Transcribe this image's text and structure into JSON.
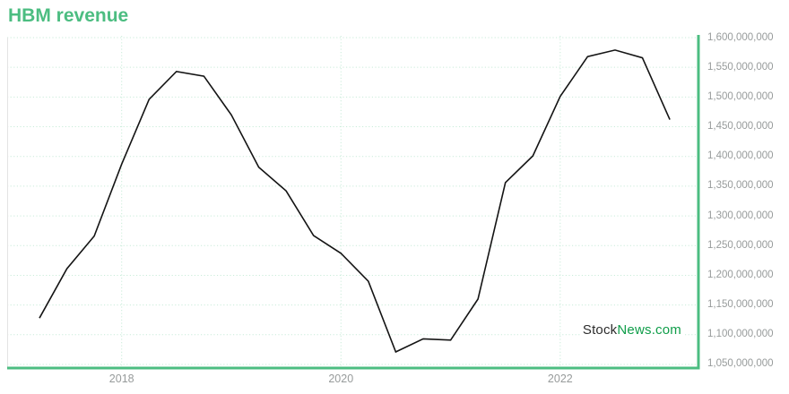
{
  "header": {
    "title": "HBM revenue"
  },
  "watermark": {
    "stock": "Stock",
    "news": "News",
    "dotcom": ".com"
  },
  "chart_data": {
    "type": "line",
    "title": "HBM revenue",
    "x": [
      "2017-Q2",
      "2017-Q3",
      "2017-Q4",
      "2018-Q1",
      "2018-Q2",
      "2018-Q3",
      "2018-Q4",
      "2019-Q1",
      "2019-Q2",
      "2019-Q3",
      "2019-Q4",
      "2020-Q1",
      "2020-Q2",
      "2020-Q3",
      "2020-Q4",
      "2021-Q1",
      "2021-Q2",
      "2021-Q3",
      "2021-Q4",
      "2022-Q1",
      "2022-Q2",
      "2022-Q3",
      "2022-Q4",
      "2023-Q1"
    ],
    "values": [
      1128000000,
      1211000000,
      1266000000,
      1387000000,
      1496000000,
      1543000000,
      1535000000,
      1470000000,
      1382000000,
      1342000000,
      1267000000,
      1237000000,
      1190000000,
      1071000000,
      1093000000,
      1091000000,
      1160000000,
      1356000000,
      1401000000,
      1501000000,
      1568000000,
      1579000000,
      1566000000,
      1462000000
    ],
    "x_tick_labels": [
      "2018",
      "2020",
      "2022"
    ],
    "x_tick_indices": [
      3,
      11,
      19
    ],
    "y_tick_labels": [
      "1,600,000,000",
      "1,550,000,000",
      "1,500,000,000",
      "1,450,000,000",
      "1,400,000,000",
      "1,350,000,000",
      "1,300,000,000",
      "1,250,000,000",
      "1,200,000,000",
      "1,150,000,000",
      "1,100,000,000",
      "1,050,000,000"
    ],
    "y_tick_values": [
      1600000000,
      1550000000,
      1500000000,
      1450000000,
      1400000000,
      1350000000,
      1300000000,
      1250000000,
      1200000000,
      1150000000,
      1100000000,
      1050000000
    ],
    "ylim": [
      1050000000,
      1600000000
    ],
    "xlabel": "",
    "ylabel": "",
    "grid": true,
    "legend_position": "none",
    "colors": {
      "accent_green": "#4cbd81",
      "line": "#141414",
      "grid_green": "#c9ecd9",
      "tick_text": "#979b9b",
      "plot_left_border": "#e3e3e3",
      "watermark_dark": "#2d2d2d",
      "watermark_green": "#0f9d49",
      "background": "#ffffff"
    }
  }
}
